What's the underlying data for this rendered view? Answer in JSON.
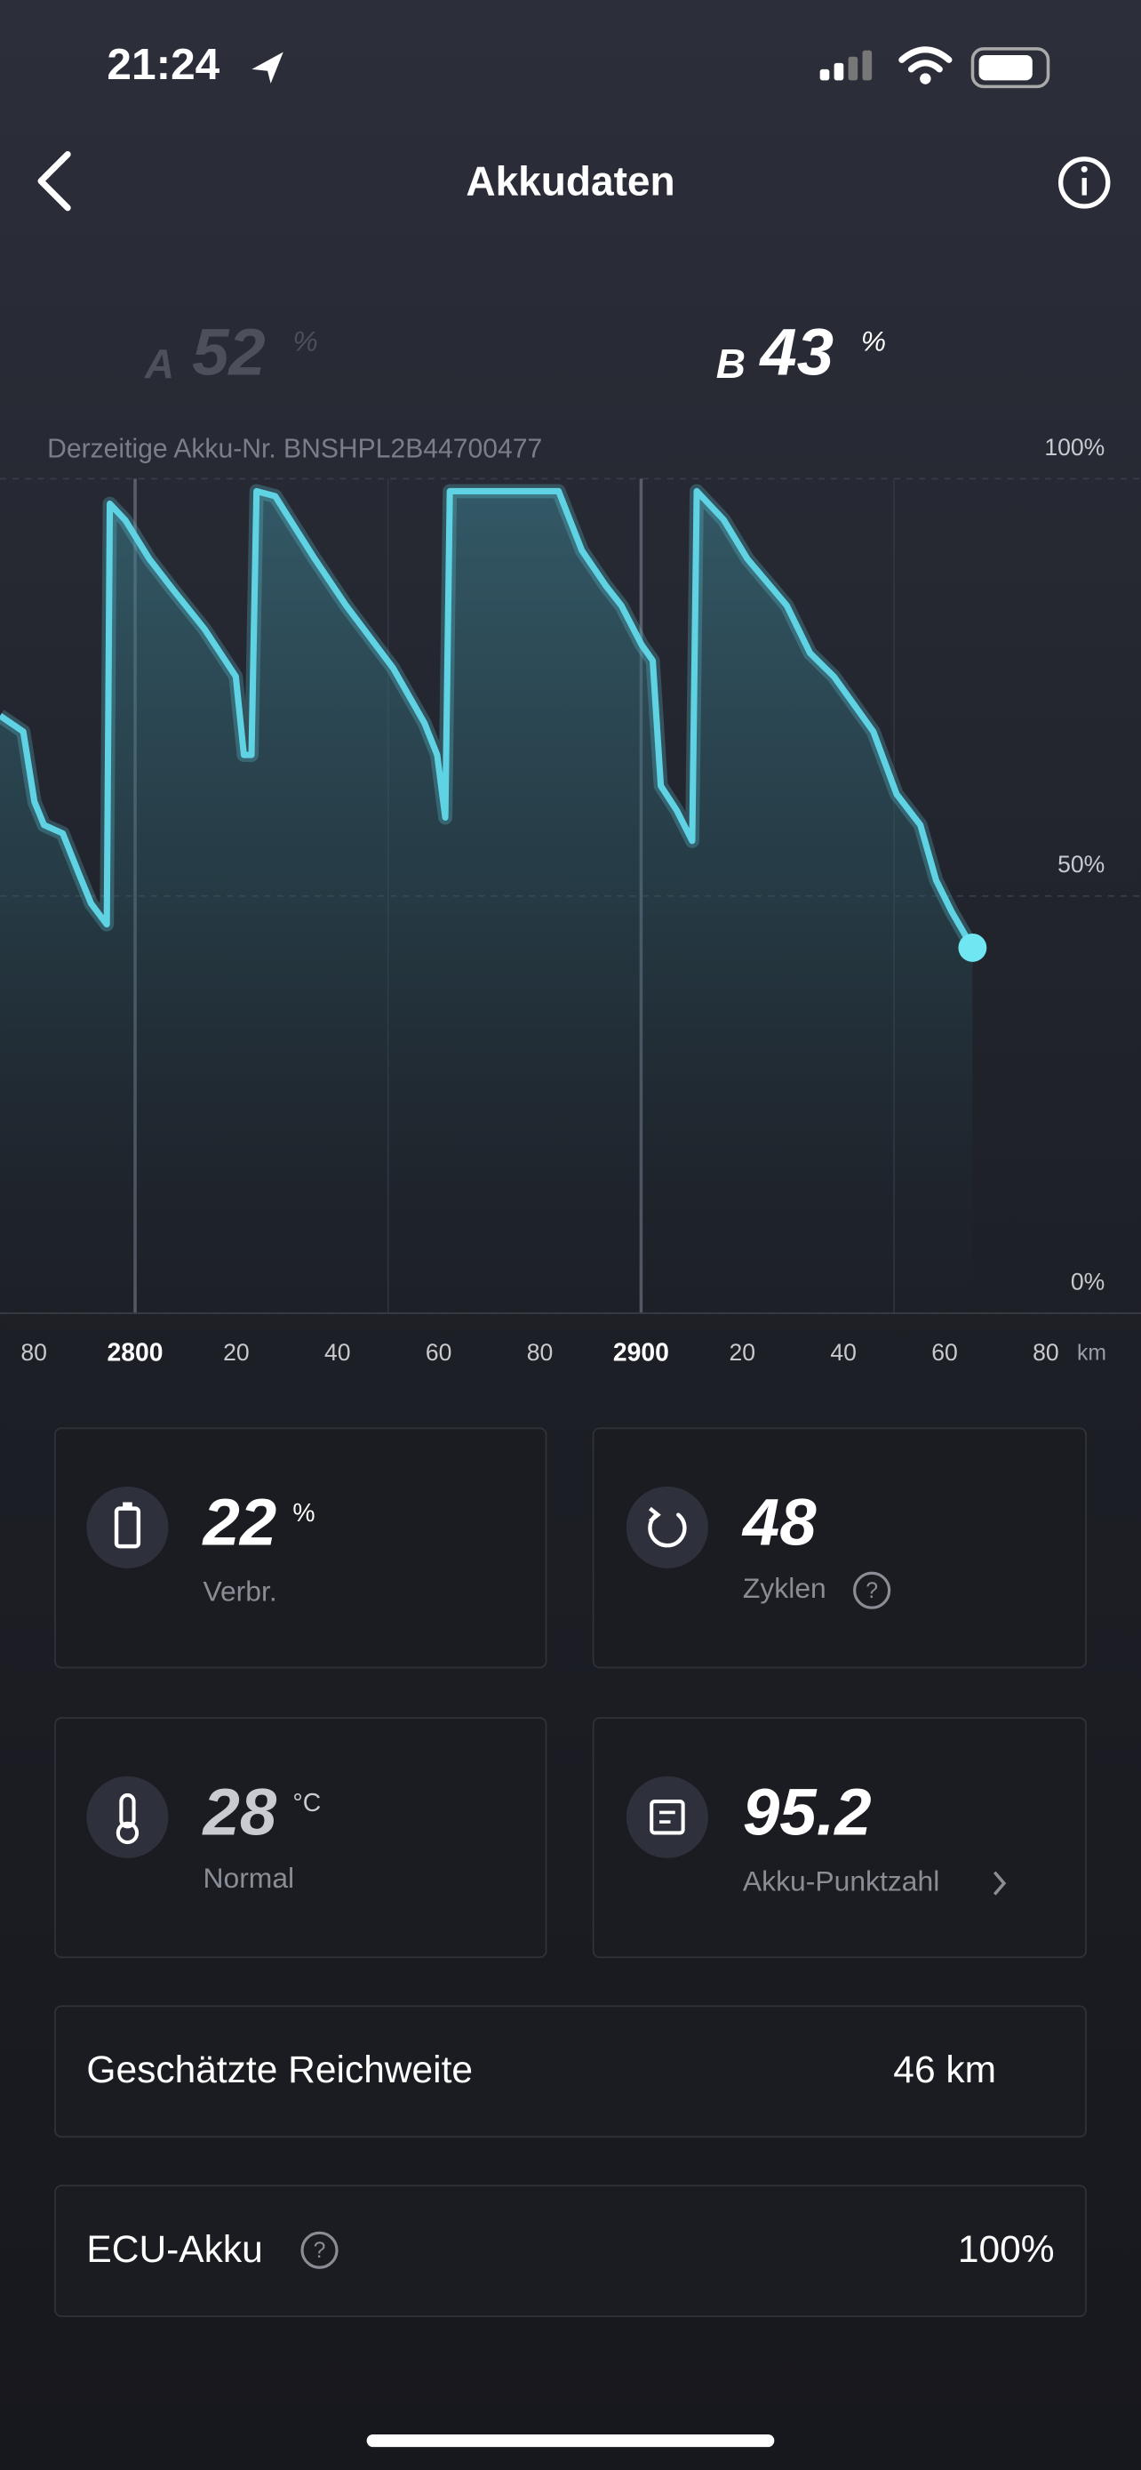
{
  "status_bar": {
    "time": "21:24"
  },
  "header": {
    "title": "Akkudaten"
  },
  "batteries": [
    {
      "label": "A",
      "value": 52,
      "unit": "%"
    },
    {
      "label": "B",
      "value": 43,
      "unit": "%"
    }
  ],
  "chart_data": {
    "type": "line",
    "subtitle": "Derzeitige Akku-Nr. BNSHPL2B44700477",
    "x_label": "km",
    "x": [
      2773.3,
      2777.9,
      2780.1,
      2782.0,
      2785.7,
      2788.8,
      2791.3,
      2794.4,
      2795.0,
      2798.1,
      2802.8,
      2807.5,
      2813.7,
      2819.9,
      2821.5,
      2823.0,
      2824.0,
      2827.7,
      2835.5,
      2841.7,
      2851.0,
      2857.2,
      2859.7,
      2861.3,
      2862.2,
      2883.7,
      2888.3,
      2893.0,
      2896.1,
      2900.1,
      2902.3,
      2903.9,
      2907.0,
      2910.1,
      2911.0,
      2916.3,
      2921.0,
      2928.8,
      2933.4,
      2938.1,
      2945.9,
      2950.5,
      2955.2,
      2958.3,
      2961.4,
      2965.5
    ],
    "series": [
      {
        "color": "#5fd3e3",
        "values": [
          71.6,
          69.7,
          61.3,
          58.5,
          57.5,
          52.8,
          49.1,
          46.6,
          97.0,
          95.0,
          90.4,
          86.7,
          82.0,
          76.3,
          66.9,
          66.9,
          98.5,
          97.9,
          90.4,
          84.8,
          77.3,
          70.7,
          66.9,
          59.4,
          98.5,
          98.5,
          91.4,
          87.2,
          84.8,
          80.1,
          78.2,
          63.2,
          60.3,
          56.6,
          98.5,
          95.1,
          90.4,
          84.8,
          79.1,
          76.3,
          69.7,
          62.2,
          58.5,
          51.9,
          48.1,
          43.8
        ]
      }
    ],
    "xlim": [
      2773.3,
      2998.8
    ],
    "ylim": [
      0,
      100
    ],
    "xticks": [
      {
        "value": 2780,
        "label": "80"
      },
      2800,
      {
        "value": 2820,
        "label": "20"
      },
      {
        "value": 2840,
        "label": "40"
      },
      {
        "value": 2860,
        "label": "60"
      },
      {
        "value": 2880,
        "label": "80"
      },
      2900,
      {
        "value": 2920,
        "label": "20"
      },
      {
        "value": 2940,
        "label": "40"
      },
      {
        "value": 2960,
        "label": "60"
      },
      {
        "value": 2980,
        "label": "80"
      }
    ],
    "xgrid": [
      2800,
      2850,
      2900,
      2950
    ],
    "yticks": [
      {
        "value": 0,
        "label": "0%"
      },
      {
        "value": 50,
        "label": "50%"
      },
      {
        "value": 100,
        "label": "100%"
      }
    ]
  },
  "cards": [
    {
      "value": 22,
      "unit": "%",
      "label": "Verbr."
    },
    {
      "value": 48,
      "label": "Zyklen"
    },
    {
      "value": 28,
      "unit": "°C",
      "label": "Normal"
    },
    {
      "value": 95.2,
      "label": "Akku-Punktzahl"
    }
  ],
  "rows": [
    {
      "label": "Geschätzte Reichweite",
      "value": "46 km"
    },
    {
      "label": "ECU-Akku",
      "value": "100%"
    }
  ]
}
